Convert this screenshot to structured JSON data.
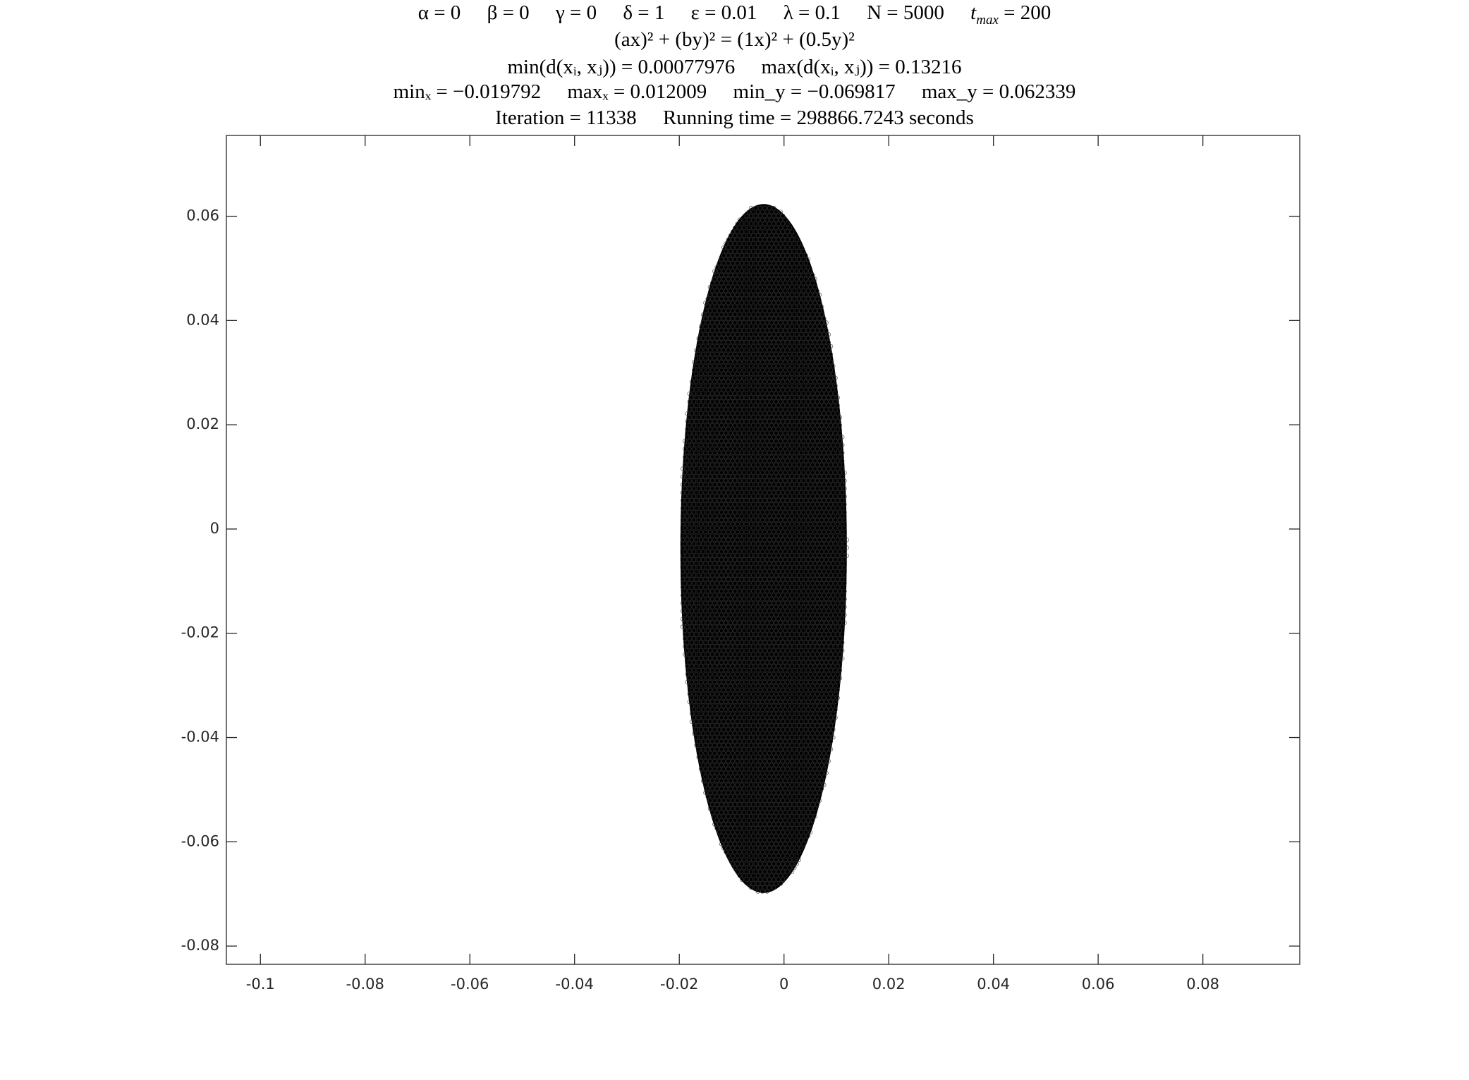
{
  "title": {
    "params": {
      "alpha": "α = 0",
      "beta": "β = 0",
      "gamma": "γ = 0",
      "delta": "δ = 1",
      "epsilon": "ε = 0.01",
      "lambda": "λ = 0.1",
      "N": "N = 5000",
      "tmax_sym": "t",
      "tmax_sub": "max",
      "tmax_val": " = 200"
    },
    "equation": "(ax)² + (by)² = (1x)² + (0.5y)²",
    "distance": {
      "min": "min(d(xᵢ, xⱼ)) = 0.00077976",
      "max": "max(d(xᵢ, xⱼ)) = 0.13216"
    },
    "extent": {
      "minx": "minₓ = −0.019792",
      "maxx": "maxₓ = 0.012009",
      "miny": "min_y = −0.069817",
      "maxy": "max_y = 0.062339"
    },
    "iteration": "Iteration = 11338",
    "running_time": "Running time = 298866.7243 seconds"
  },
  "chart_data": {
    "type": "scatter",
    "xlim": [
      -0.1065,
      0.0985
    ],
    "ylim": [
      -0.0835,
      0.0755
    ],
    "x_ticks": [
      -0.1,
      -0.08,
      -0.06,
      -0.04,
      -0.02,
      0,
      0.02,
      0.04,
      0.06,
      0.08
    ],
    "x_tick_labels": [
      "-0.1",
      "-0.08",
      "-0.06",
      "-0.04",
      "-0.02",
      "0",
      "0.02",
      "0.04",
      "0.06",
      "0.08"
    ],
    "y_ticks": [
      -0.08,
      -0.06,
      -0.04,
      -0.02,
      0,
      0.02,
      0.04,
      0.06
    ],
    "y_tick_labels": [
      "-0.08",
      "-0.06",
      "-0.04",
      "-0.02",
      "0",
      "0.02",
      "0.04",
      "0.06"
    ],
    "grid": false,
    "point_color": "#000000",
    "ellipse": {
      "min_x": -0.019792,
      "max_x": 0.012009,
      "min_y": -0.069817,
      "max_y": 0.062339,
      "n_points": 5000
    }
  }
}
